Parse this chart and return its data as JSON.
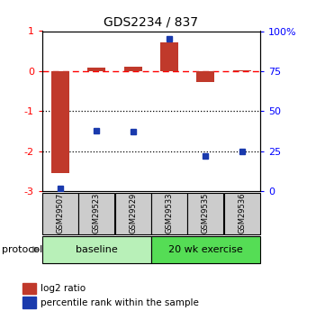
{
  "title": "GDS2234 / 837",
  "samples": [
    "GSM29507",
    "GSM29523",
    "GSM29529",
    "GSM29533",
    "GSM29535",
    "GSM29536"
  ],
  "log2_ratio": [
    -2.55,
    0.09,
    0.1,
    0.72,
    -0.28,
    0.02
  ],
  "percentile_rank": [
    2,
    38,
    37,
    95,
    22,
    25
  ],
  "ylim_left": [
    -3.0,
    1.0
  ],
  "ylim_right": [
    0,
    100
  ],
  "bar_color": "#c0392b",
  "square_color": "#1a3aad",
  "baseline_color": "#b8f0b8",
  "exercise_color": "#55dd55",
  "sample_box_color": "#cccccc",
  "protocol_text": "protocol",
  "baseline_text": "baseline",
  "exercise_text": "20 wk exercise",
  "legend_bar": "log2 ratio",
  "legend_square": "percentile rank within the sample",
  "right_tick_labels": [
    "0",
    "25",
    "50",
    "75",
    "100%"
  ],
  "right_tick_vals": [
    0,
    25,
    50,
    75,
    100
  ],
  "left_tick_vals": [
    -3,
    -2,
    -1,
    0,
    1
  ],
  "left_tick_labels": [
    "-3",
    "-2",
    "-1",
    "0",
    "1"
  ]
}
